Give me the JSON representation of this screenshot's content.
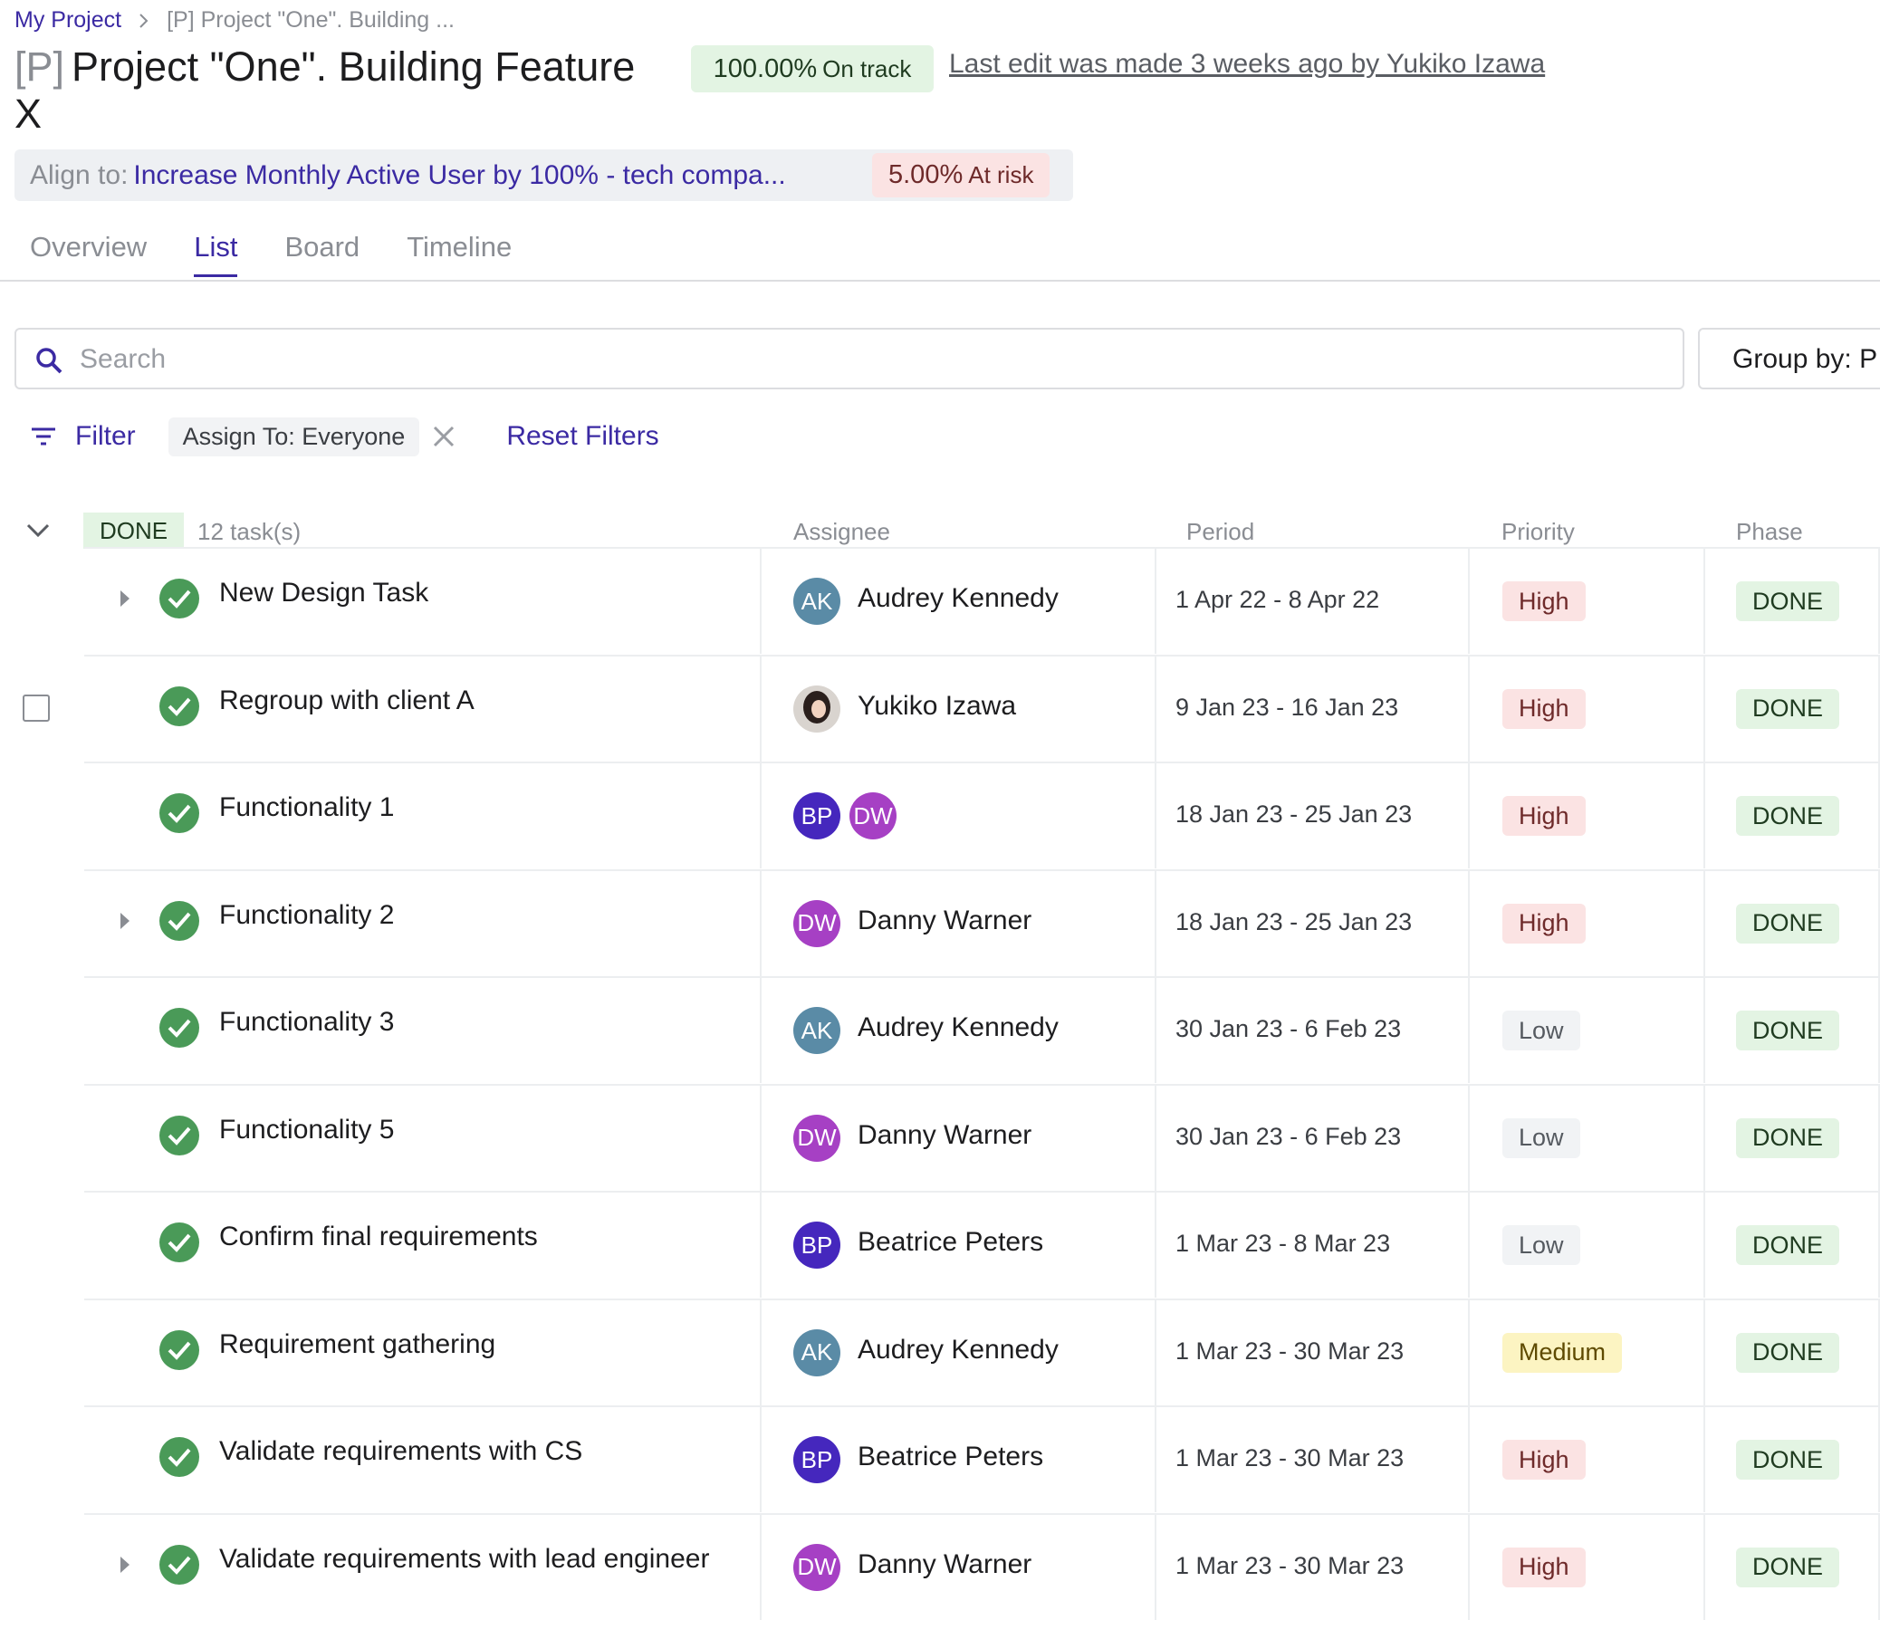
{
  "breadcrumb": [
    "My Project",
    "[P] Project \"One\". Building ..."
  ],
  "header": {
    "prefix": "[P]",
    "title": "Project \"One\". Building Feature X",
    "status_value": "100.00%",
    "status_label": "On track",
    "last_edit": "Last edit was made 3 weeks ago by Yukiko Izawa"
  },
  "align": {
    "label": "Align to:",
    "target": "Increase Monthly Active User by 100% - tech compa...",
    "value": "5.00%",
    "status": "At risk"
  },
  "tabs": [
    "Overview",
    "List",
    "Board",
    "Timeline"
  ],
  "active_tab": 1,
  "search": {
    "placeholder": "Search",
    "group_by": "Group by: P"
  },
  "filters": {
    "filter": "Filter",
    "chip": "Assign To: Everyone",
    "reset": "Reset Filters"
  },
  "group": {
    "status": "DONE",
    "count": "12 task(s)"
  },
  "columns": [
    "Assignee",
    "Period",
    "Priority",
    "Phase"
  ],
  "rows": [
    {
      "name": "New Design Task",
      "expandable": true,
      "assignees": [
        {
          "initials": "AK",
          "color": "#5a8ba6"
        }
      ],
      "assignee_name": "Audrey Kennedy",
      "period": "1 Apr 22 - 8 Apr 22",
      "priority": "High",
      "priority_bg": "#fbe3e3",
      "priority_fg": "#6e2a2a",
      "phase": "DONE"
    },
    {
      "name": "Regroup with client A",
      "expandable": false,
      "checkbox": true,
      "assignees": [
        {
          "photo": true
        }
      ],
      "assignee_name": "Yukiko Izawa",
      "period": "9 Jan 23 - 16 Jan 23",
      "priority": "High",
      "priority_bg": "#fbe3e3",
      "priority_fg": "#6e2a2a",
      "phase": "DONE"
    },
    {
      "name": "Functionality 1",
      "expandable": false,
      "assignees": [
        {
          "initials": "BP",
          "color": "#4527bd"
        },
        {
          "initials": "DW",
          "color": "#a640c4"
        }
      ],
      "period": "18 Jan 23 - 25 Jan 23",
      "priority": "High",
      "priority_bg": "#fbe3e3",
      "priority_fg": "#6e2a2a",
      "phase": "DONE"
    },
    {
      "name": "Functionality 2",
      "expandable": true,
      "assignees": [
        {
          "initials": "DW",
          "color": "#a640c4"
        }
      ],
      "assignee_name": "Danny Warner",
      "period": "18 Jan 23 - 25 Jan 23",
      "priority": "High",
      "priority_bg": "#fbe3e3",
      "priority_fg": "#6e2a2a",
      "phase": "DONE"
    },
    {
      "name": "Functionality 3",
      "expandable": false,
      "assignees": [
        {
          "initials": "AK",
          "color": "#5a8ba6"
        }
      ],
      "assignee_name": "Audrey Kennedy",
      "period": "30 Jan 23 - 6 Feb 23",
      "priority": "Low",
      "priority_bg": "#f1f3f5",
      "priority_fg": "#555a60",
      "phase": "DONE"
    },
    {
      "name": "Functionality 5",
      "expandable": false,
      "assignees": [
        {
          "initials": "DW",
          "color": "#a640c4"
        }
      ],
      "assignee_name": "Danny Warner",
      "period": "30 Jan 23 - 6 Feb 23",
      "priority": "Low",
      "priority_bg": "#f1f3f5",
      "priority_fg": "#555a60",
      "phase": "DONE"
    },
    {
      "name": "Confirm final requirements",
      "expandable": false,
      "assignees": [
        {
          "initials": "BP",
          "color": "#4527bd"
        }
      ],
      "assignee_name": "Beatrice Peters",
      "period": "1 Mar 23 - 8 Mar 23",
      "priority": "Low",
      "priority_bg": "#f1f3f5",
      "priority_fg": "#555a60",
      "phase": "DONE"
    },
    {
      "name": "Requirement gathering",
      "expandable": false,
      "assignees": [
        {
          "initials": "AK",
          "color": "#5a8ba6"
        }
      ],
      "assignee_name": "Audrey Kennedy",
      "period": "1 Mar 23 - 30 Mar 23",
      "priority": "Medium",
      "priority_bg": "#fcf4c2",
      "priority_fg": "#5e4a00",
      "phase": "DONE"
    },
    {
      "name": "Validate requirements with CS",
      "expandable": false,
      "assignees": [
        {
          "initials": "BP",
          "color": "#4527bd"
        }
      ],
      "assignee_name": "Beatrice Peters",
      "period": "1 Mar 23 - 30 Mar 23",
      "priority": "High",
      "priority_bg": "#fbe3e3",
      "priority_fg": "#6e2a2a",
      "phase": "DONE"
    },
    {
      "name": "Validate requirements with lead engineer",
      "expandable": true,
      "assignees": [
        {
          "initials": "DW",
          "color": "#a640c4"
        }
      ],
      "assignee_name": "Danny Warner",
      "period": "1 Mar 23 - 30 Mar 23",
      "priority": "High",
      "priority_bg": "#fbe3e3",
      "priority_fg": "#6e2a2a",
      "phase": "DONE"
    }
  ]
}
